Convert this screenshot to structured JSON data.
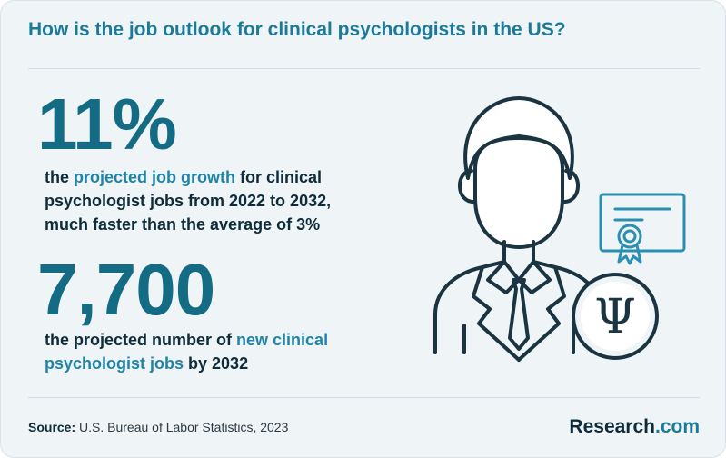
{
  "title": "How is the job outlook for clinical psychologists in the US?",
  "stat1": {
    "value": "11%",
    "line1_before": "the ",
    "line1_highlight": "projected job growth",
    "line1_after": " for clinical",
    "line2": "psychologist jobs from 2022 to 2032,",
    "line3": "much faster than the average of 3%"
  },
  "stat2": {
    "value": "7,700",
    "line1_before": "the projected number of ",
    "line1_highlight": "new clinical",
    "line2_highlight": "psychologist jobs",
    "line2_after": " by 2032"
  },
  "footer": {
    "source_label": "Source:",
    "source_text": " U.S. Bureau of Labor Statistics, 2023",
    "logo_main": "Research",
    "logo_suffix": ".com"
  },
  "illustration": {
    "icons": [
      "psychologist-avatar-icon",
      "certificate-icon",
      "psi-symbol-icon"
    ],
    "psi_symbol": "Ψ",
    "colors": {
      "stroke": "#1a3442",
      "accent": "#2a8fb0",
      "text": "#136b84"
    }
  }
}
